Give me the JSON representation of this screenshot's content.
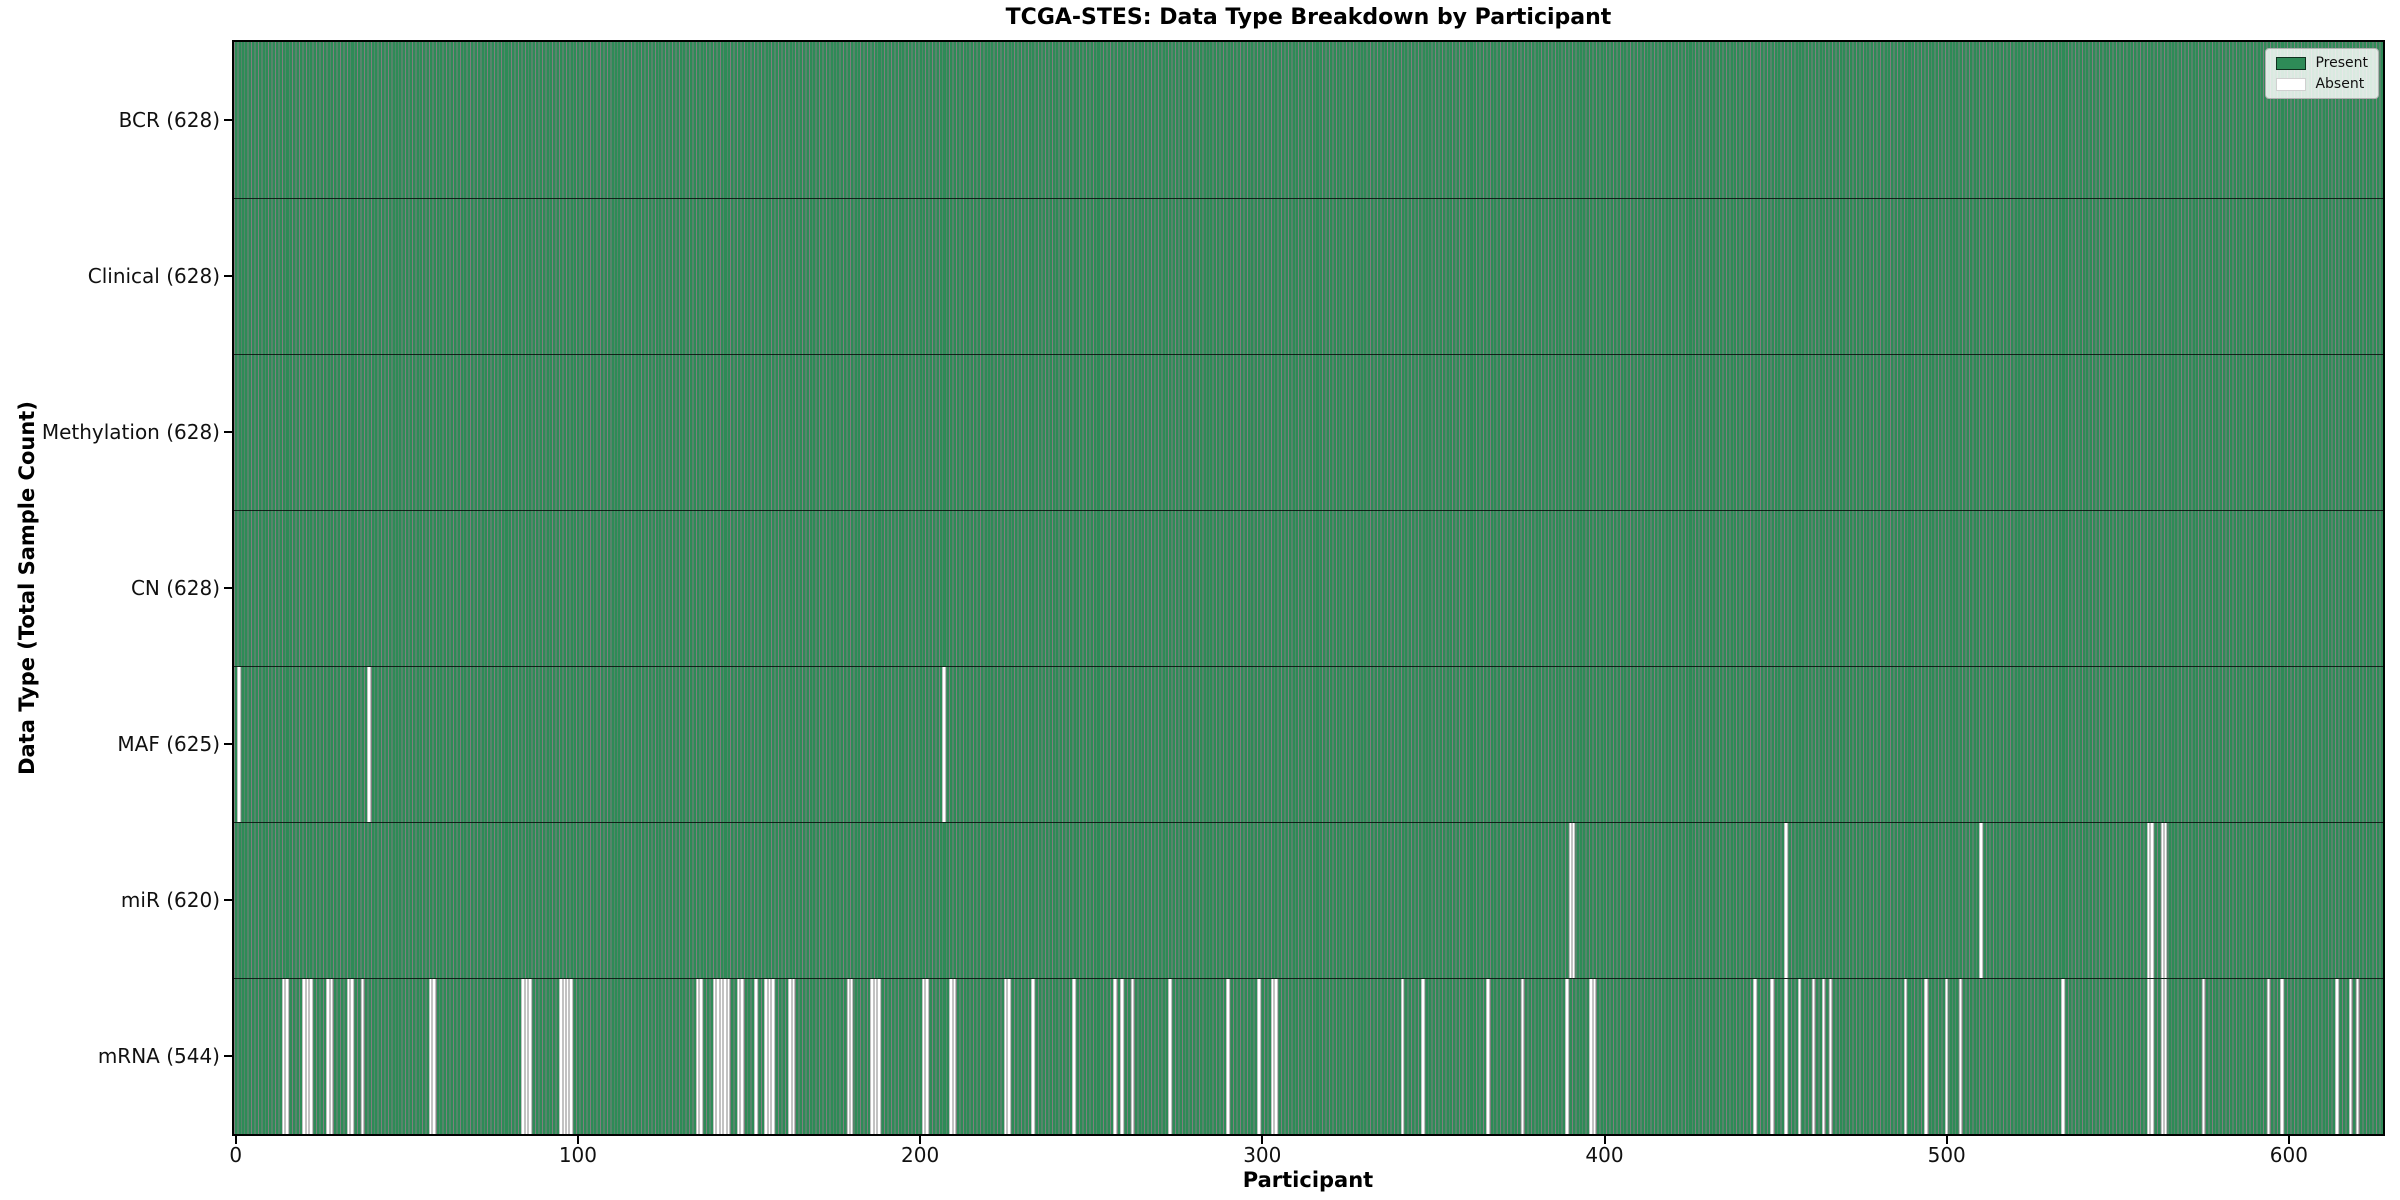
{
  "figure": {
    "title": "TCGA-STES: Data Type Breakdown by Participant",
    "xlabel": "Participant",
    "ylabel": "Data Type (Total Sample Count)"
  },
  "legend": {
    "position": "upper right",
    "entries": [
      {
        "label": "Present",
        "color": "#2e8b57"
      },
      {
        "label": "Absent",
        "color": "#ffffff"
      }
    ]
  },
  "chart_data": {
    "type": "heatmap",
    "title": "TCGA-STES: Data Type Breakdown by Participant",
    "xlabel": "Participant",
    "ylabel": "Data Type (Total Sample Count)",
    "x_ticks": [
      0,
      100,
      200,
      300,
      400,
      500,
      600
    ],
    "xlim": [
      -0.5,
      627.5
    ],
    "n_participants": 628,
    "grid": false,
    "legend_position": "upper right",
    "colors": {
      "present": "#2e8b57",
      "absent": "#ffffff",
      "bar_edge": "#000000"
    },
    "rows": [
      {
        "label": "BCR (628)",
        "data_type": "BCR",
        "present_count": 628,
        "absent_participants": []
      },
      {
        "label": "Clinical (628)",
        "data_type": "Clinical",
        "present_count": 628,
        "absent_participants": []
      },
      {
        "label": "Methylation (628)",
        "data_type": "Methylation",
        "present_count": 628,
        "absent_participants": []
      },
      {
        "label": "CN (628)",
        "data_type": "CN",
        "present_count": 628,
        "absent_participants": []
      },
      {
        "label": "MAF (625)",
        "data_type": "MAF",
        "present_count": 625,
        "absent_participants": [
          1,
          39,
          207
        ]
      },
      {
        "label": "miR (620)",
        "data_type": "miR",
        "present_count": 620,
        "absent_participants": [
          390,
          391,
          453,
          510,
          559,
          560,
          563,
          564
        ]
      },
      {
        "label": "mRNA (544)",
        "data_type": "mRNA",
        "present_count": 544,
        "absent_participants": [
          14,
          15,
          20,
          21,
          22,
          27,
          28,
          33,
          34,
          37,
          57,
          58,
          84,
          85,
          86,
          95,
          96,
          97,
          98,
          135,
          136,
          140,
          141,
          142,
          143,
          144,
          147,
          148,
          152,
          155,
          156,
          157,
          162,
          163,
          179,
          180,
          186,
          187,
          188,
          201,
          202,
          209,
          210,
          225,
          226,
          233,
          245,
          257,
          259,
          262,
          273,
          290,
          299,
          303,
          304,
          341,
          347,
          366,
          376,
          389,
          396,
          397,
          444,
          449,
          453,
          457,
          461,
          464,
          466,
          488,
          494,
          500,
          504,
          534,
          559,
          560,
          563,
          564,
          575,
          594,
          598,
          614,
          618,
          620
        ]
      }
    ]
  }
}
